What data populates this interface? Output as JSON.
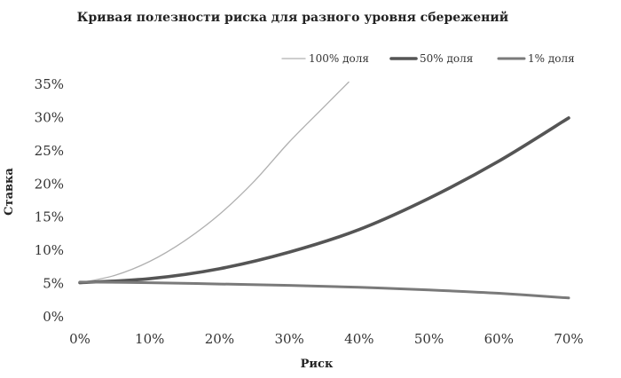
{
  "chart_data": {
    "type": "line",
    "title": "Кривая полезности риска для разного уровня сбережений",
    "xlabel": "Риск",
    "ylabel": "Ставка",
    "x_ticks": [
      "0%",
      "10%",
      "20%",
      "30%",
      "40%",
      "50%",
      "60%",
      "70%"
    ],
    "y_ticks": [
      "0%",
      "5%",
      "10%",
      "15%",
      "20%",
      "25%",
      "30%",
      "35%"
    ],
    "xlim": [
      0,
      70
    ],
    "ylim": [
      0,
      35
    ],
    "grid": false,
    "legend_position": "top-right",
    "series": [
      {
        "name": "100% доля",
        "color": "#b0b0b0",
        "x": [
          0,
          5,
          10,
          15,
          20,
          25,
          30,
          35,
          38.5
        ],
        "y": [
          5.0,
          6.1,
          8.2,
          11.3,
          15.3,
          20.3,
          26.2,
          31.5,
          35.2
        ]
      },
      {
        "name": "50% доля",
        "color": "#555555",
        "x": [
          0,
          10,
          20,
          30,
          40,
          50,
          60,
          70
        ],
        "y": [
          5.0,
          5.6,
          7.1,
          9.6,
          13.0,
          17.7,
          23.3,
          29.8
        ]
      },
      {
        "name": "1% доля",
        "color": "#7a7a7a",
        "x": [
          0,
          10,
          20,
          30,
          40,
          50,
          60,
          70
        ],
        "y": [
          5.1,
          5.0,
          4.8,
          4.6,
          4.3,
          3.9,
          3.4,
          2.7
        ]
      }
    ]
  }
}
